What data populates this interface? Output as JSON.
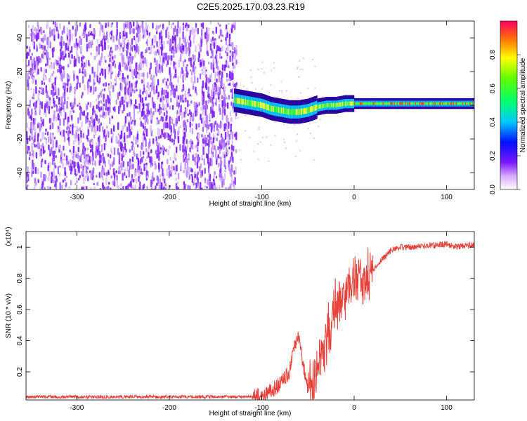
{
  "title": "C2E5.2025.170.03.23.R19",
  "chart_data": [
    {
      "type": "heatmap",
      "xlabel": "Height of straight line (km)",
      "ylabel": "Frequency (Hz)",
      "xlim": [
        -355,
        130
      ],
      "ylim": [
        -50,
        50
      ],
      "xticks": [
        -300,
        -200,
        -100,
        0,
        100
      ],
      "yticks": [
        -40,
        -20,
        0,
        20,
        40
      ],
      "colorbar": {
        "label": "Normalized spectral amplitude",
        "range": [
          0,
          1
        ],
        "ticks": [
          0.0,
          0.2,
          0.4,
          0.6,
          0.8
        ]
      },
      "noise_region_x": [
        -355,
        -128
      ],
      "signal_track": {
        "x": [
          -130,
          -120,
          -110,
          -100,
          -90,
          -80,
          -70,
          -60,
          -50,
          -40,
          -30,
          -20,
          -10,
          0,
          20,
          50,
          80,
          100,
          130
        ],
        "freq": [
          3,
          2,
          1,
          0,
          -2,
          -3,
          -4,
          -4,
          -3,
          -1,
          0,
          0,
          1,
          1,
          1,
          1,
          1,
          1,
          1
        ]
      }
    },
    {
      "type": "line",
      "xlabel": "Height of straight line (km)",
      "ylabel": "SNR (10 * v/v)",
      "y_multiplier": "(x10⁴)",
      "xlim": [
        -355,
        130
      ],
      "ylim": [
        0.02,
        1.1
      ],
      "xticks": [
        -300,
        -200,
        -100,
        0,
        100
      ],
      "yticks": [
        0.2,
        0.4,
        0.6,
        0.8,
        1.0
      ],
      "series": [
        {
          "color": "#e8413a",
          "x": [
            -355,
            -300,
            -200,
            -120,
            -100,
            -90,
            -80,
            -70,
            -65,
            -60,
            -55,
            -50,
            -45,
            -40,
            -30,
            -20,
            -10,
            -5,
            0,
            5,
            10,
            20,
            30,
            40,
            50,
            60,
            80,
            100,
            110,
            120,
            130
          ],
          "y": [
            0.04,
            0.04,
            0.04,
            0.04,
            0.05,
            0.08,
            0.12,
            0.2,
            0.35,
            0.42,
            0.25,
            0.08,
            0.1,
            0.2,
            0.4,
            0.6,
            0.7,
            0.75,
            0.82,
            0.8,
            0.78,
            0.84,
            0.92,
            0.98,
            1.0,
            1.0,
            1.01,
            1.02,
            1.0,
            1.01,
            1.01
          ]
        }
      ]
    }
  ]
}
